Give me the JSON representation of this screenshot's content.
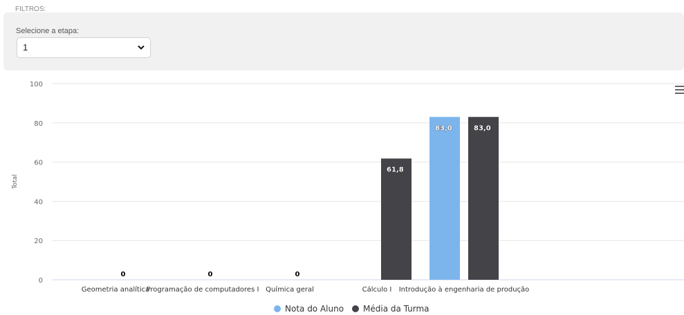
{
  "filters": {
    "title": "FILTROS:",
    "stage_label": "Selecione a etapa:",
    "stage_value": "1"
  },
  "menu": {
    "icon": "hamburger-menu-icon"
  },
  "chart_data": {
    "type": "bar",
    "categories": [
      "Geometria analítica",
      "Programação de computadores I",
      "Química geral",
      "Cálculo I",
      "Introdução à engenharia de produção"
    ],
    "series": [
      {
        "name": "Nota do Aluno",
        "color": "#7cb5ec",
        "values": [
          0,
          0,
          0,
          0,
          83.0
        ],
        "labels": [
          "0",
          "0",
          "0",
          "",
          "83,0"
        ]
      },
      {
        "name": "Média da Turma",
        "color": "#434348",
        "values": [
          0,
          0,
          0,
          61.8,
          83.0
        ],
        "labels": [
          "",
          "",
          "",
          "61,8",
          "83,0"
        ]
      }
    ],
    "ylabel": "Total",
    "ylim": [
      0,
      100
    ],
    "yticks": [
      "0",
      "20",
      "40",
      "60",
      "80",
      "100"
    ],
    "grid": true,
    "legend_position": "bottom-center"
  }
}
